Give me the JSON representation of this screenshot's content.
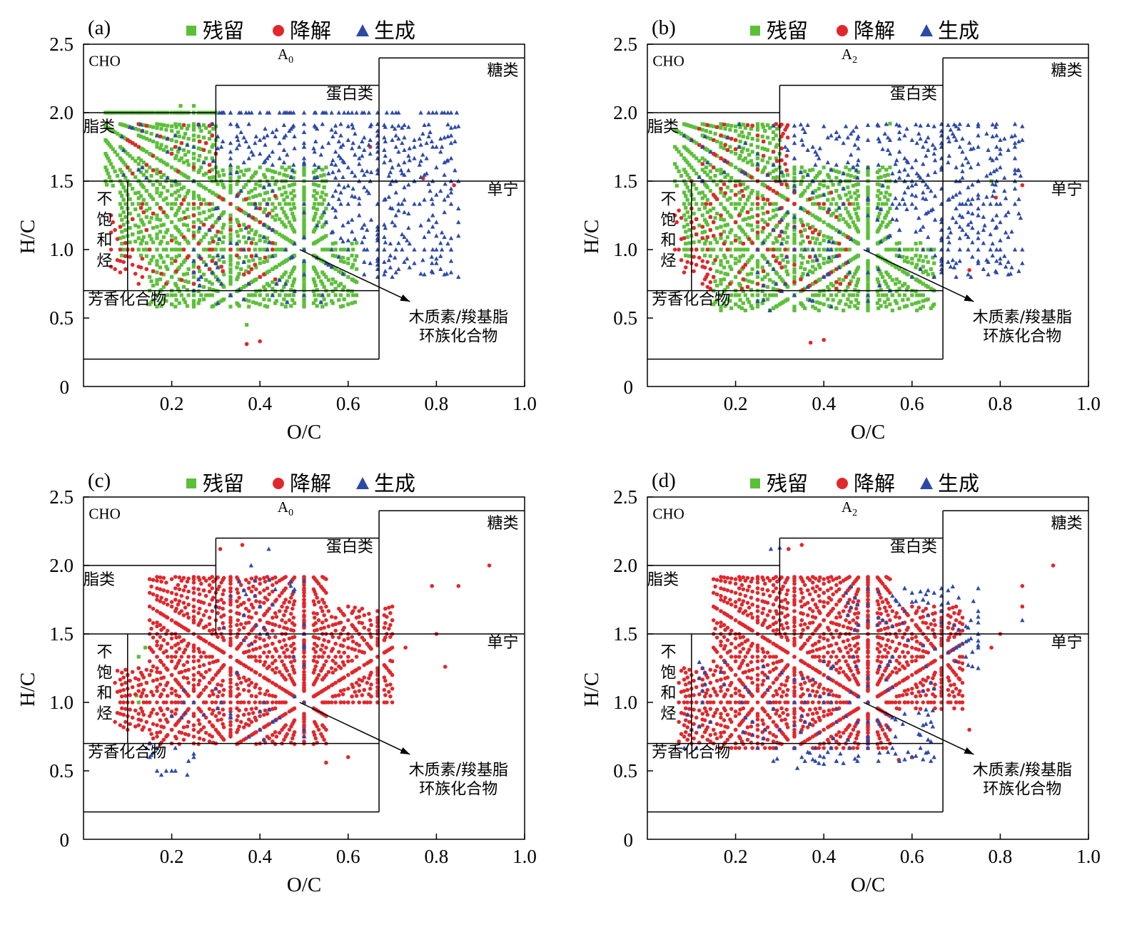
{
  "figure": {
    "legend": {
      "retained": "残留",
      "degraded": "降解",
      "generated": "生成"
    },
    "colors": {
      "retained": "#5cbf3a",
      "degraded": "#e0282c",
      "generated": "#2c49a8"
    },
    "axes": {
      "xlabel": "O/C",
      "ylabel": "H/C",
      "origin_label": "0",
      "xticks": [
        "0.2",
        "0.4",
        "0.6",
        "0.8",
        "1.0"
      ],
      "yticks": [
        "0.5",
        "1.0",
        "1.5",
        "2.0",
        "2.5"
      ],
      "xlim": [
        0,
        1.0
      ],
      "ylim": [
        0,
        2.5
      ]
    },
    "regions": {
      "cho": "CHO",
      "lipids": "脂类",
      "protein": "蛋白类",
      "sugars": "糖类",
      "tannins": "单宁",
      "unsat_1": "不",
      "unsat_2": "饱",
      "unsat_3": "和",
      "unsat_4": "烃",
      "aromatic": "芳香化合物",
      "lignin_1": "木质素/羧基脂",
      "lignin_2": "环族化合物"
    }
  },
  "chart_data": [
    {
      "type": "scatter",
      "panel": "(a)",
      "sample": "A",
      "sample_sub": "0",
      "xlabel": "O/C",
      "ylabel": "H/C",
      "xlim": [
        0,
        1.0
      ],
      "ylim": [
        0,
        2.5
      ],
      "series": [
        {
          "name": "残留",
          "marker": "square",
          "density": 1.0,
          "bands": [
            [
              0.05,
              0.3,
              1.45,
              2.0
            ],
            [
              0.08,
              0.55,
              0.95,
              1.6
            ],
            [
              0.15,
              0.62,
              0.58,
              1.05
            ]
          ],
          "extra_points": [
            [
              0.37,
              0.45
            ],
            [
              0.22,
              2.05
            ],
            [
              0.25,
              2.05
            ]
          ]
        },
        {
          "name": "降解",
          "marker": "circle",
          "density": 0.55,
          "bands": [
            [
              0.06,
              0.12,
              0.82,
              1.25
            ],
            [
              0.1,
              0.3,
              1.55,
              1.97
            ],
            [
              0.12,
              0.45,
              0.75,
              1.4
            ]
          ],
          "extra_points": [
            [
              0.37,
              0.31
            ],
            [
              0.4,
              0.33
            ],
            [
              0.84,
              1.47
            ],
            [
              0.77,
              1.52
            ],
            [
              0.65,
              1.75
            ]
          ]
        },
        {
          "name": "生成",
          "marker": "triangle",
          "density": 0.4,
          "bands": [
            [
              0.08,
              0.3,
              1.5,
              1.97
            ],
            [
              0.3,
              0.85,
              0.8,
              2.05
            ],
            [
              0.25,
              0.55,
              0.6,
              1.2
            ]
          ],
          "extra_points": [
            [
              0.82,
              1.48
            ],
            [
              0.8,
              1.75
            ],
            [
              0.72,
              1.58
            ],
            [
              0.79,
              0.9
            ]
          ]
        }
      ]
    },
    {
      "type": "scatter",
      "panel": "(b)",
      "sample": "A",
      "sample_sub": "2",
      "xlabel": "O/C",
      "ylabel": "H/C",
      "xlim": [
        0,
        1.0
      ],
      "ylim": [
        0,
        2.5
      ],
      "series": [
        {
          "name": "残留",
          "marker": "square",
          "density": 1.0,
          "bands": [
            [
              0.06,
              0.3,
              1.45,
              1.97
            ],
            [
              0.08,
              0.55,
              0.95,
              1.6
            ],
            [
              0.15,
              0.65,
              0.55,
              1.05
            ]
          ],
          "extra_points": [
            [
              0.55,
              1.92
            ],
            [
              0.78,
              1.5
            ]
          ]
        },
        {
          "name": "降解",
          "marker": "circle",
          "density": 0.65,
          "bands": [
            [
              0.06,
              0.13,
              0.8,
              1.3
            ],
            [
              0.1,
              0.32,
              1.45,
              1.98
            ],
            [
              0.12,
              0.47,
              0.7,
              1.45
            ]
          ],
          "extra_points": [
            [
              0.37,
              0.32
            ],
            [
              0.4,
              0.34
            ],
            [
              0.85,
              1.47
            ],
            [
              0.73,
              0.85
            ],
            [
              0.79,
              1.38
            ]
          ]
        },
        {
          "name": "生成",
          "marker": "triangle",
          "density": 0.35,
          "bands": [
            [
              0.08,
              0.3,
              1.5,
              1.97
            ],
            [
              0.3,
              0.85,
              0.8,
              1.95
            ],
            [
              0.25,
              0.55,
              0.55,
              1.15
            ]
          ],
          "extra_points": [
            [
              0.84,
              1.58
            ],
            [
              0.8,
              1.7
            ],
            [
              0.73,
              1.78
            ]
          ]
        }
      ]
    },
    {
      "type": "scatter",
      "panel": "(c)",
      "sample": "A",
      "sample_sub": "0",
      "xlabel": "O/C",
      "ylabel": "H/C",
      "xlim": [
        0,
        1.0
      ],
      "ylim": [
        0,
        2.5
      ],
      "series": [
        {
          "name": "残留",
          "marker": "square",
          "density": 0.08,
          "bands": [
            [
              0.08,
              0.17,
              0.85,
              1.4
            ]
          ],
          "extra_points": [
            [
              0.14,
              1.4
            ],
            [
              0.15,
              1.2
            ],
            [
              0.12,
              1.05
            ]
          ]
        },
        {
          "name": "降解",
          "marker": "circle",
          "density": 0.95,
          "bands": [
            [
              0.07,
              0.2,
              0.8,
              1.25
            ],
            [
              0.15,
              0.55,
              0.68,
              1.95
            ],
            [
              0.5,
              0.7,
              1.0,
              1.7
            ]
          ],
          "extra_points": [
            [
              0.36,
              2.15
            ],
            [
              0.31,
              2.12
            ],
            [
              0.92,
              2.0
            ],
            [
              0.85,
              1.85
            ],
            [
              0.79,
              1.85
            ],
            [
              0.8,
              1.5
            ],
            [
              0.73,
              1.4
            ],
            [
              0.55,
              0.56
            ],
            [
              0.6,
              0.6
            ],
            [
              0.82,
              1.26
            ]
          ]
        },
        {
          "name": "生成",
          "marker": "triangle",
          "density": 0.22,
          "bands": [
            [
              0.14,
              0.25,
              0.45,
              0.75
            ],
            [
              0.2,
              0.5,
              0.7,
              1.1
            ],
            [
              0.3,
              0.5,
              1.2,
              1.9
            ]
          ],
          "extra_points": [
            [
              0.42,
              2.12
            ],
            [
              0.47,
              1.85
            ],
            [
              0.38,
              2.0
            ]
          ]
        }
      ]
    },
    {
      "type": "scatter",
      "panel": "(d)",
      "sample": "A",
      "sample_sub": "2",
      "xlabel": "O/C",
      "ylabel": "H/C",
      "xlim": [
        0,
        1.0
      ],
      "ylim": [
        0,
        2.5
      ],
      "series": [
        {
          "name": "残留",
          "marker": "square",
          "density": 0.0,
          "bands": [],
          "extra_points": []
        },
        {
          "name": "降解",
          "marker": "circle",
          "density": 1.0,
          "bands": [
            [
              0.07,
              0.2,
              0.7,
              1.25
            ],
            [
              0.15,
              0.55,
              0.65,
              1.95
            ],
            [
              0.5,
              0.72,
              0.95,
              1.7
            ]
          ],
          "extra_points": [
            [
              0.35,
              2.15
            ],
            [
              0.32,
              2.12
            ],
            [
              0.92,
              2.0
            ],
            [
              0.85,
              1.85
            ],
            [
              0.85,
              1.7
            ],
            [
              0.8,
              1.5
            ],
            [
              0.78,
              1.4
            ],
            [
              0.57,
              0.58
            ],
            [
              0.6,
              0.6
            ],
            [
              0.73,
              0.8
            ]
          ]
        },
        {
          "name": "生成",
          "marker": "triangle",
          "density": 0.35,
          "bands": [
            [
              0.08,
              0.3,
              0.65,
              1.3
            ],
            [
              0.25,
              0.65,
              0.55,
              1.3
            ],
            [
              0.45,
              0.75,
              1.2,
              1.85
            ]
          ],
          "extra_points": [
            [
              0.28,
              2.12
            ],
            [
              0.3,
              2.13
            ],
            [
              0.85,
              1.6
            ],
            [
              0.75,
              1.45
            ],
            [
              0.34,
              0.52
            ],
            [
              0.4,
              0.55
            ]
          ]
        }
      ]
    }
  ]
}
